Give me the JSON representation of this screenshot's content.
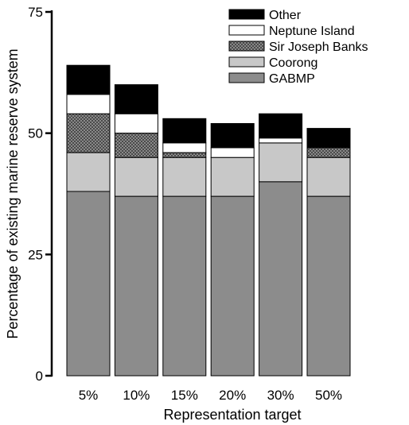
{
  "chart_data": {
    "type": "bar",
    "stacked": true,
    "categories": [
      "5%",
      "10%",
      "15%",
      "20%",
      "30%",
      "50%"
    ],
    "series": [
      {
        "name": "GABMP",
        "values": [
          38,
          37,
          37,
          37,
          40,
          37
        ]
      },
      {
        "name": "Coorong",
        "values": [
          8,
          8,
          8,
          8,
          8,
          8
        ]
      },
      {
        "name": "Sir Joseph Banks",
        "values": [
          8,
          5,
          1,
          0,
          0,
          2
        ]
      },
      {
        "name": "Neptune Island",
        "values": [
          4,
          4,
          2,
          2,
          1,
          0
        ]
      },
      {
        "name": "Other",
        "values": [
          6,
          6,
          5,
          5,
          5,
          4
        ]
      }
    ],
    "series_colors": {
      "GABMP": "#8c8c8c",
      "Coorong": "#c8c8c8",
      "Sir Joseph Banks": "crosshatch-gray",
      "Neptune Island": "#ffffff",
      "Other": "#000000"
    },
    "title": "",
    "xlabel": "Representation  target",
    "ylabel": "Percentage of existing marine reserve system",
    "ylim": [
      0,
      75
    ],
    "yticks": [
      0,
      25,
      50,
      75
    ],
    "grid": false,
    "legend_position": "top-right",
    "legend_order": [
      "Other",
      "Neptune Island",
      "Sir Joseph Banks",
      "Coorong",
      "GABMP"
    ]
  }
}
